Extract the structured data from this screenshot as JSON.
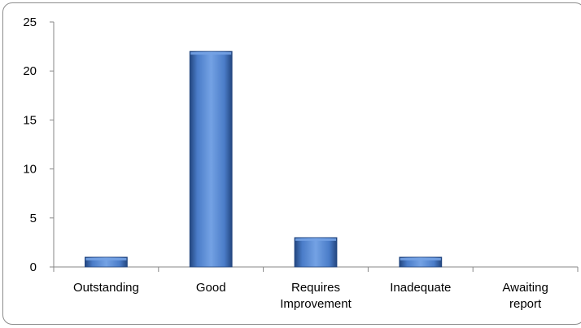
{
  "chart_data": {
    "type": "bar",
    "categories": [
      [
        "Outstanding"
      ],
      [
        "Good"
      ],
      [
        "Requires",
        "Improvement"
      ],
      [
        "Inadequate"
      ],
      [
        "Awaiting",
        "report"
      ]
    ],
    "values": [
      1,
      22,
      3,
      1,
      0
    ],
    "ylim": [
      0,
      25
    ],
    "yticks": [
      0,
      5,
      10,
      15,
      20,
      25
    ],
    "title": "",
    "xlabel": "",
    "ylabel": "",
    "grid": false,
    "legend": "none",
    "colors": {
      "bar": "#3f72c0",
      "bar_light": "#74a2e4",
      "bar_dark": "#23467f",
      "axis": "#878787"
    }
  }
}
